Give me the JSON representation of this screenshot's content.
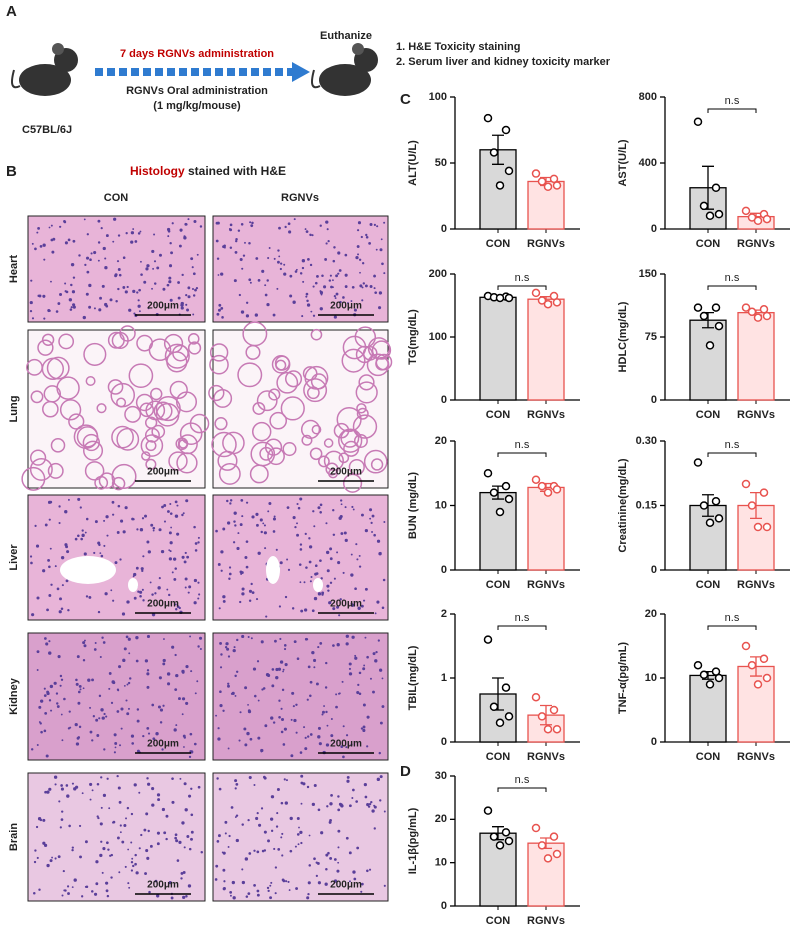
{
  "panel_a": {
    "label": "A",
    "strain": "C57BL/6J",
    "duration": "7 days RGNVs administration",
    "route": "RGNVs Oral administration",
    "dose": "(1 mg/kg/mouse)",
    "endpoint": "Euthanize",
    "analyses": [
      "1.  H&E Toxicity staining",
      "2.  Serum liver and kidney toxicity marker"
    ]
  },
  "panel_b": {
    "label": "B",
    "title_highlight": "Histology",
    "title_rest": "stained with H&E",
    "columns": [
      "CON",
      "RGNVs"
    ],
    "rows": [
      "Heart",
      "Lung",
      "Liver",
      "Kidney",
      "Brain"
    ],
    "scale_bar": "200μm"
  },
  "panel_c_label": "C",
  "panel_d_label": "D",
  "chart_data": [
    {
      "type": "bar",
      "ylabel": "ALT(U/L)",
      "categories": [
        "CON",
        "RGNVs"
      ],
      "values": [
        60,
        36
      ],
      "errors": [
        11,
        3
      ],
      "points": [
        [
          84,
          75,
          58,
          44,
          33
        ],
        [
          42,
          38,
          36,
          33,
          32
        ]
      ],
      "colors": [
        "#d9d9d9",
        "#ffe3e3"
      ],
      "edge_colors": [
        "#000000",
        "#e8534f"
      ],
      "ylim": [
        0,
        100
      ],
      "yticks": [
        0,
        50,
        100
      ]
    },
    {
      "type": "bar",
      "ylabel": "AST(U/L)",
      "categories": [
        "CON",
        "RGNVs"
      ],
      "values": [
        250,
        75
      ],
      "errors": [
        130,
        20
      ],
      "points": [
        [
          650,
          250,
          140,
          90,
          80
        ],
        [
          110,
          90,
          70,
          60,
          50
        ]
      ],
      "colors": [
        "#d9d9d9",
        "#ffe3e3"
      ],
      "edge_colors": [
        "#000000",
        "#e8534f"
      ],
      "ylim": [
        0,
        800
      ],
      "yticks": [
        0,
        400,
        800
      ],
      "annotation": "n.s"
    },
    {
      "type": "bar",
      "ylabel": "TG(mg/dL)",
      "categories": [
        "CON",
        "RGNVs"
      ],
      "values": [
        163,
        160
      ],
      "errors": [
        2,
        4
      ],
      "points": [
        [
          165,
          164,
          163,
          162,
          162
        ],
        [
          170,
          165,
          158,
          155,
          152
        ]
      ],
      "colors": [
        "#d9d9d9",
        "#ffe3e3"
      ],
      "edge_colors": [
        "#000000",
        "#e8534f"
      ],
      "ylim": [
        0,
        200
      ],
      "yticks": [
        0,
        100,
        200
      ],
      "annotation": "n.s"
    },
    {
      "type": "bar",
      "ylabel": "HDLC(mg/dL)",
      "categories": [
        "CON",
        "RGNVs"
      ],
      "values": [
        95,
        104
      ],
      "errors": [
        9,
        3
      ],
      "points": [
        [
          110,
          110,
          100,
          88,
          65
        ],
        [
          110,
          108,
          105,
          100,
          98
        ]
      ],
      "colors": [
        "#d9d9d9",
        "#ffe3e3"
      ],
      "edge_colors": [
        "#000000",
        "#e8534f"
      ],
      "ylim": [
        0,
        150
      ],
      "yticks": [
        0,
        75,
        150
      ],
      "annotation": "n.s"
    },
    {
      "type": "bar",
      "ylabel": "BUN (mg/dL)",
      "categories": [
        "CON",
        "RGNVs"
      ],
      "values": [
        12,
        12.8
      ],
      "errors": [
        1,
        0.6
      ],
      "points": [
        [
          15,
          13,
          12,
          11,
          9
        ],
        [
          14,
          13,
          13,
          12.5,
          12
        ]
      ],
      "colors": [
        "#d9d9d9",
        "#ffe3e3"
      ],
      "edge_colors": [
        "#000000",
        "#e8534f"
      ],
      "ylim": [
        0,
        20
      ],
      "yticks": [
        0,
        10,
        20
      ],
      "annotation": "n.s"
    },
    {
      "type": "bar",
      "ylabel": "Creatinine(mg/dL)",
      "categories": [
        "CON",
        "RGNVs"
      ],
      "values": [
        0.15,
        0.15
      ],
      "errors": [
        0.025,
        0.03
      ],
      "points": [
        [
          0.25,
          0.16,
          0.15,
          0.12,
          0.11
        ],
        [
          0.2,
          0.18,
          0.15,
          0.1,
          0.1
        ]
      ],
      "colors": [
        "#d9d9d9",
        "#ffe3e3"
      ],
      "edge_colors": [
        "#000000",
        "#e8534f"
      ],
      "ylim": [
        0,
        0.3
      ],
      "yticks": [
        0,
        0.15,
        {
          "value": 0.3,
          "label": "0.30"
        }
      ],
      "annotation": "n.s"
    },
    {
      "type": "bar",
      "ylabel": "TBIL(mg/dL)",
      "categories": [
        "CON",
        "RGNVs"
      ],
      "values": [
        0.75,
        0.42
      ],
      "errors": [
        0.25,
        0.15
      ],
      "points": [
        [
          1.6,
          0.85,
          0.55,
          0.4,
          0.3
        ],
        [
          0.7,
          0.5,
          0.4,
          0.2,
          0.2
        ]
      ],
      "colors": [
        "#d9d9d9",
        "#ffe3e3"
      ],
      "edge_colors": [
        "#000000",
        "#e8534f"
      ],
      "ylim": [
        0,
        2
      ],
      "yticks": [
        0,
        1,
        2
      ],
      "annotation": "n.s"
    },
    {
      "type": "bar",
      "ylabel": "TNF-α(pg/mL)",
      "categories": [
        "CON",
        "RGNVs"
      ],
      "values": [
        10.4,
        11.8
      ],
      "errors": [
        0.6,
        1.5
      ],
      "points": [
        [
          12,
          11,
          10.5,
          10,
          9
        ],
        [
          15,
          13,
          12,
          10,
          9
        ]
      ],
      "colors": [
        "#d9d9d9",
        "#ffe3e3"
      ],
      "edge_colors": [
        "#000000",
        "#e8534f"
      ],
      "ylim": [
        0,
        20
      ],
      "yticks": [
        0,
        10,
        20
      ],
      "annotation": "n.s"
    },
    {
      "type": "bar",
      "ylabel": "IL-1β(pg/mL)",
      "categories": [
        "CON",
        "RGNVs"
      ],
      "values": [
        16.8,
        14.5
      ],
      "errors": [
        1.5,
        1.2
      ],
      "points": [
        [
          22,
          17,
          16,
          15,
          14
        ],
        [
          18,
          16,
          14,
          12,
          11
        ]
      ],
      "colors": [
        "#d9d9d9",
        "#ffe3e3"
      ],
      "edge_colors": [
        "#000000",
        "#e8534f"
      ],
      "ylim": [
        0,
        30
      ],
      "yticks": [
        0,
        10,
        20,
        30
      ],
      "annotation": "n.s"
    }
  ]
}
